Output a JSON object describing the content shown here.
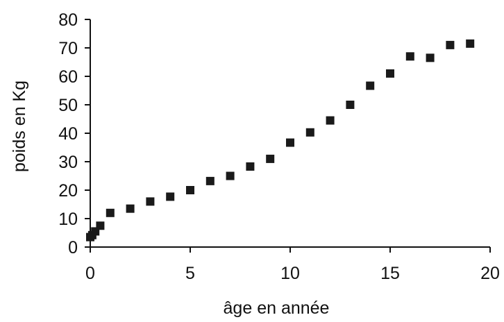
{
  "chart_data": {
    "type": "scatter",
    "title": "",
    "xlabel": "âge en année",
    "ylabel": "poids en Kg",
    "xlim": [
      0,
      20
    ],
    "ylim": [
      0,
      80
    ],
    "xticks": [
      0,
      5,
      10,
      15,
      20
    ],
    "yticks": [
      0,
      10,
      20,
      30,
      40,
      50,
      60,
      70,
      80
    ],
    "grid": false,
    "legend": "none",
    "marker": "square",
    "colors": {
      "marker": "#1a1a1a",
      "axis": "#111111",
      "background": "#ffffff"
    },
    "points": [
      {
        "x": 0,
        "y": 3.5
      },
      {
        "x": 0.1,
        "y": 4.2
      },
      {
        "x": 0.25,
        "y": 5.5
      },
      {
        "x": 0.5,
        "y": 7.5
      },
      {
        "x": 1,
        "y": 12
      },
      {
        "x": 2,
        "y": 13.5
      },
      {
        "x": 3,
        "y": 16
      },
      {
        "x": 4,
        "y": 17.7
      },
      {
        "x": 5,
        "y": 20
      },
      {
        "x": 6,
        "y": 23.2
      },
      {
        "x": 7,
        "y": 25
      },
      {
        "x": 8,
        "y": 28.3
      },
      {
        "x": 9,
        "y": 31
      },
      {
        "x": 10,
        "y": 36.7
      },
      {
        "x": 11,
        "y": 40.3
      },
      {
        "x": 12,
        "y": 44.5
      },
      {
        "x": 13,
        "y": 50
      },
      {
        "x": 14,
        "y": 56.7
      },
      {
        "x": 15,
        "y": 61
      },
      {
        "x": 16,
        "y": 67
      },
      {
        "x": 17,
        "y": 66.5
      },
      {
        "x": 18,
        "y": 71
      },
      {
        "x": 19,
        "y": 71.5
      }
    ]
  }
}
